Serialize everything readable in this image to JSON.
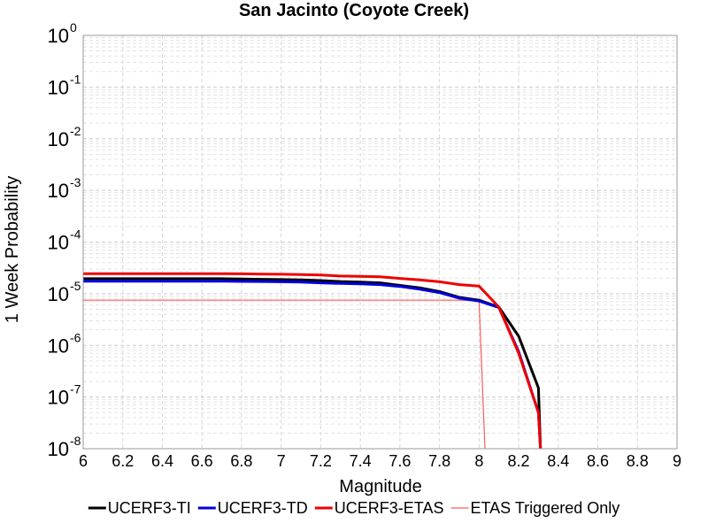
{
  "chart_data": {
    "type": "line",
    "title": "San Jacinto (Coyote Creek)",
    "xlabel": "Magnitude",
    "ylabel": "1 Week Probability",
    "xlim": [
      6,
      9
    ],
    "ylim": [
      1e-08,
      1
    ],
    "yscale": "log",
    "grid": true,
    "x_ticks": [
      "6",
      "6.2",
      "6.4",
      "6.6",
      "6.8",
      "7",
      "7.2",
      "7.4",
      "7.6",
      "7.8",
      "8",
      "8.2",
      "8.4",
      "8.6",
      "8.8",
      "9"
    ],
    "y_ticks": [
      {
        "base": "10",
        "exp": "0"
      },
      {
        "base": "10",
        "exp": "-1"
      },
      {
        "base": "10",
        "exp": "-2"
      },
      {
        "base": "10",
        "exp": "-3"
      },
      {
        "base": "10",
        "exp": "-4"
      },
      {
        "base": "10",
        "exp": "-5"
      },
      {
        "base": "10",
        "exp": "-6"
      },
      {
        "base": "10",
        "exp": "-7"
      },
      {
        "base": "10",
        "exp": "-8"
      }
    ],
    "series": [
      {
        "name": "UCERF3-TI",
        "color": "#000000",
        "width": "thick",
        "x": [
          6.0,
          6.1,
          6.2,
          6.3,
          6.4,
          6.5,
          6.6,
          6.7,
          6.8,
          6.9,
          7.0,
          7.1,
          7.2,
          7.3,
          7.4,
          7.5,
          7.6,
          7.7,
          7.8,
          7.9,
          8.0,
          8.1,
          8.2,
          8.3,
          8.31
        ],
        "y": [
          1.95e-05,
          1.95e-05,
          1.95e-05,
          1.95e-05,
          1.95e-05,
          1.95e-05,
          1.95e-05,
          1.95e-05,
          1.93e-05,
          1.9e-05,
          1.88e-05,
          1.85e-05,
          1.8e-05,
          1.72e-05,
          1.68e-05,
          1.62e-05,
          1.45e-05,
          1.3e-05,
          1.1e-05,
          8.5e-06,
          7.5e-06,
          5.5e-06,
          1.5e-06,
          1.5e-07,
          1e-09
        ]
      },
      {
        "name": "UCERF3-TD",
        "color": "#0000dd",
        "width": "thick",
        "x": [
          6.0,
          6.1,
          6.2,
          6.3,
          6.4,
          6.5,
          6.6,
          6.7,
          6.8,
          6.9,
          7.0,
          7.1,
          7.2,
          7.3,
          7.4,
          7.5,
          7.6,
          7.7,
          7.8,
          7.9,
          8.0,
          8.1,
          8.2,
          8.3,
          8.31
        ],
        "y": [
          1.75e-05,
          1.75e-05,
          1.75e-05,
          1.75e-05,
          1.75e-05,
          1.75e-05,
          1.75e-05,
          1.75e-05,
          1.73e-05,
          1.72e-05,
          1.7e-05,
          1.68e-05,
          1.62e-05,
          1.58e-05,
          1.55e-05,
          1.5e-05,
          1.38e-05,
          1.22e-05,
          1.05e-05,
          8.2e-06,
          7.2e-06,
          5.4e-06,
          7.5e-07,
          5e-08,
          1e-09
        ]
      },
      {
        "name": "UCERF3-ETAS",
        "color": "#ee0000",
        "width": "thick",
        "x": [
          6.0,
          6.1,
          6.2,
          6.3,
          6.4,
          6.5,
          6.6,
          6.7,
          6.8,
          6.9,
          7.0,
          7.1,
          7.2,
          7.3,
          7.4,
          7.5,
          7.6,
          7.7,
          7.8,
          7.9,
          8.0,
          8.1,
          8.2,
          8.3,
          8.31
        ],
        "y": [
          2.45e-05,
          2.45e-05,
          2.45e-05,
          2.45e-05,
          2.45e-05,
          2.45e-05,
          2.45e-05,
          2.45e-05,
          2.43e-05,
          2.4e-05,
          2.38e-05,
          2.35e-05,
          2.3e-05,
          2.2e-05,
          2.17e-05,
          2.12e-05,
          1.98e-05,
          1.85e-05,
          1.7e-05,
          1.5e-05,
          1.4e-05,
          5.5e-06,
          7e-07,
          5e-08,
          1e-09
        ]
      },
      {
        "name": "ETAS Triggered Only",
        "color": "#ff5a5a",
        "width": "thin",
        "x": [
          6.0,
          7.9,
          8.0,
          8.03
        ],
        "y": [
          7.5e-06,
          7.5e-06,
          7.3e-06,
          1e-09
        ]
      }
    ],
    "legend_position": "bottom"
  }
}
